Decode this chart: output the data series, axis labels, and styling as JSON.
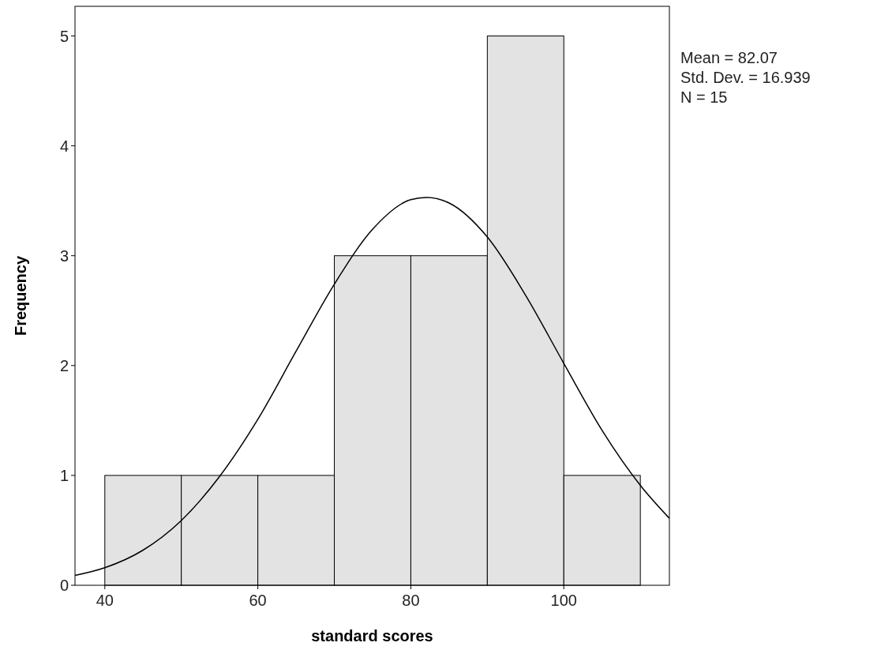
{
  "chart_data": {
    "type": "histogram",
    "xlabel": "standard scores",
    "ylabel": "Frequency",
    "bins": [
      40,
      50,
      60,
      70,
      80,
      90,
      100,
      110
    ],
    "values": [
      1,
      1,
      1,
      3,
      3,
      5,
      1
    ],
    "color": "#e3e3e3",
    "series": [
      {
        "type": "line",
        "color": "#000000",
        "x": [
          36.1,
          40,
          45,
          50,
          55,
          60,
          65,
          70,
          75,
          80,
          82.07,
          85,
          90,
          95,
          100,
          105,
          110,
          113.8
        ],
        "values": [
          0.09,
          0.16,
          0.32,
          0.59,
          0.99,
          1.51,
          2.13,
          2.74,
          3.24,
          3.51,
          3.53,
          3.48,
          3.17,
          2.64,
          2.02,
          1.41,
          0.91,
          0.61
        ]
      }
    ],
    "xlim": [
      36.1,
      113.8
    ],
    "xticks": [
      40,
      60,
      80,
      100
    ],
    "ylim": [
      0,
      5.27
    ],
    "yticks": [
      0,
      1,
      2,
      3,
      4,
      5
    ],
    "annotations": [
      "Mean = 82.07",
      "Std. Dev. = 16.939",
      "N = 15"
    ],
    "grid": false,
    "marker": "none",
    "line_style": "solid"
  }
}
